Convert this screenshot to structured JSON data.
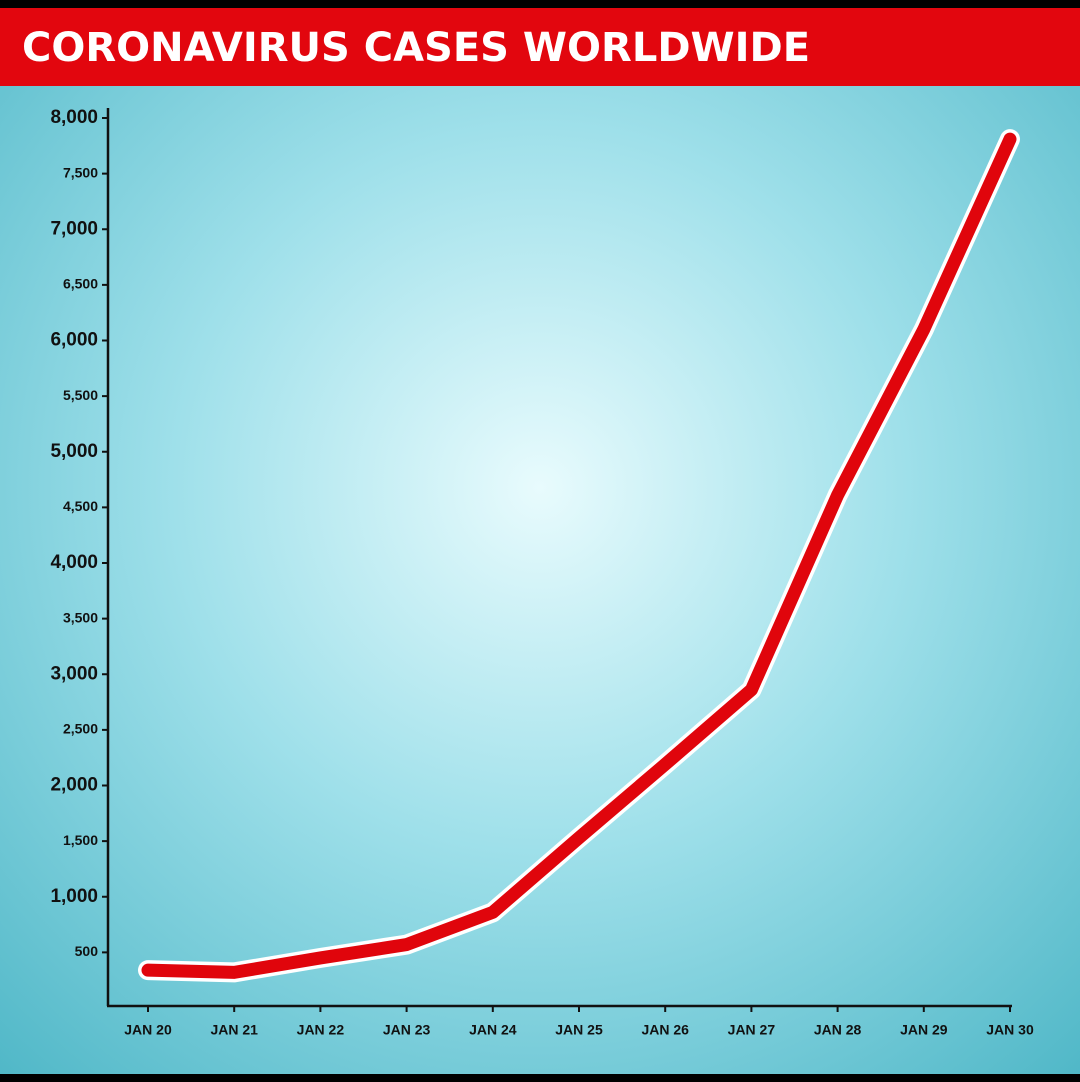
{
  "chart_data": {
    "type": "line",
    "title": "CORONAVIRUS CASES WORLDWIDE",
    "categories": [
      "JAN 20",
      "JAN 21",
      "JAN 22",
      "JAN 23",
      "JAN 24",
      "JAN 25",
      "JAN 26",
      "JAN 27",
      "JAN 28",
      "JAN 29",
      "JAN 30"
    ],
    "values": [
      340,
      320,
      450,
      570,
      860,
      1530,
      2190,
      2860,
      4610,
      6100,
      7810
    ],
    "color": "#e0050c",
    "ylim": [
      0,
      8000
    ],
    "yticks": [
      500,
      {
        "value": 1000,
        "label": "1,000"
      },
      {
        "value": 1500,
        "label": "1,500"
      },
      {
        "value": 2000,
        "label": "2,000"
      },
      {
        "value": 2500,
        "label": "2,500"
      },
      {
        "value": 3000,
        "label": "3,000"
      },
      {
        "value": 3500,
        "label": "3,500"
      },
      {
        "value": 4000,
        "label": "4,000"
      },
      {
        "value": 4500,
        "label": "4,500"
      },
      {
        "value": 5000,
        "label": "5,000"
      },
      {
        "value": 5500,
        "label": "5,500"
      },
      {
        "value": 6000,
        "label": "6,000"
      },
      {
        "value": 6500,
        "label": "6,500"
      },
      {
        "value": 7000,
        "label": "7,000"
      },
      {
        "value": 7500,
        "label": "7,500"
      },
      {
        "value": 8000,
        "label": "8,000"
      }
    ],
    "grid": false
  }
}
